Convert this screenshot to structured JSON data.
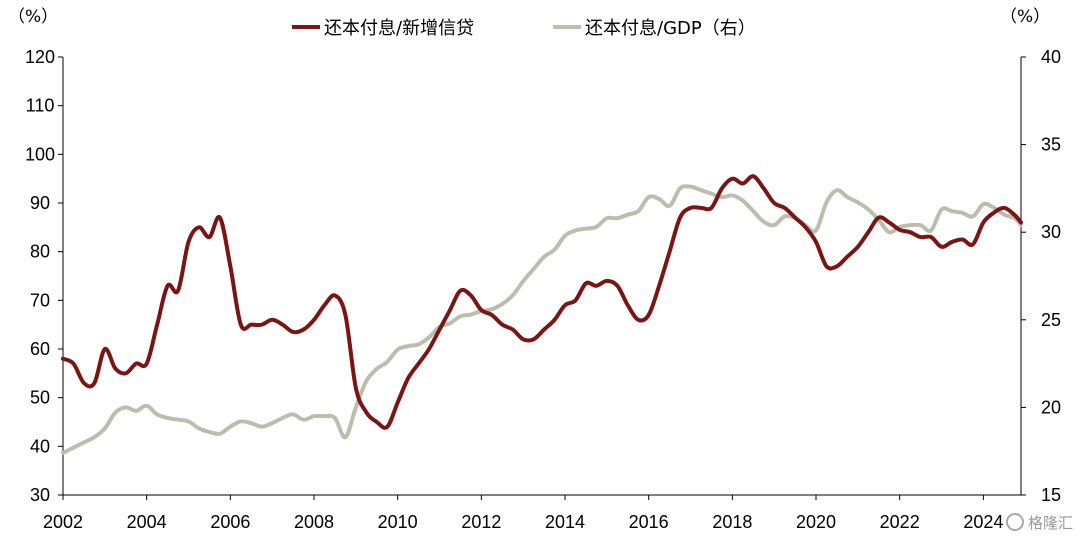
{
  "chart_data": {
    "type": "line",
    "legend_position": "top",
    "grid": false,
    "left_axis": {
      "unit_label": "（%）",
      "ylim": [
        30,
        120
      ],
      "ticks": [
        "120",
        "110",
        "100",
        "90",
        "80",
        "70",
        "60",
        "50",
        "40",
        "30"
      ]
    },
    "right_axis": {
      "unit_label": "（%）",
      "ylim": [
        15,
        40
      ],
      "ticks": [
        "40",
        "35",
        "30",
        "25",
        "20",
        "15"
      ]
    },
    "x_axis": {
      "xlim": [
        2002,
        2024.9
      ],
      "ticks": [
        "2002",
        "2004",
        "2006",
        "2008",
        "2010",
        "2012",
        "2014",
        "2016",
        "2018",
        "2020",
        "2022",
        "2024"
      ]
    },
    "series": [
      {
        "name": "还本付息/新增信贷",
        "axis": "left",
        "color": "#7b1414",
        "points": [
          [
            2002.0,
            58
          ],
          [
            2002.25,
            57
          ],
          [
            2002.5,
            53
          ],
          [
            2002.75,
            53
          ],
          [
            2003.0,
            60
          ],
          [
            2003.25,
            56
          ],
          [
            2003.5,
            55
          ],
          [
            2003.75,
            57
          ],
          [
            2004.0,
            57
          ],
          [
            2004.25,
            65
          ],
          [
            2004.5,
            73
          ],
          [
            2004.75,
            72
          ],
          [
            2005.0,
            82
          ],
          [
            2005.25,
            85
          ],
          [
            2005.5,
            83
          ],
          [
            2005.75,
            87
          ],
          [
            2006.0,
            77
          ],
          [
            2006.25,
            65
          ],
          [
            2006.5,
            65
          ],
          [
            2006.75,
            65
          ],
          [
            2007.0,
            66
          ],
          [
            2007.25,
            65
          ],
          [
            2007.5,
            63.5
          ],
          [
            2007.75,
            64
          ],
          [
            2008.0,
            66
          ],
          [
            2008.25,
            69
          ],
          [
            2008.5,
            71
          ],
          [
            2008.75,
            67
          ],
          [
            2009.0,
            52
          ],
          [
            2009.25,
            47
          ],
          [
            2009.5,
            45
          ],
          [
            2009.75,
            44
          ],
          [
            2010.0,
            49
          ],
          [
            2010.25,
            54
          ],
          [
            2010.5,
            57
          ],
          [
            2010.75,
            60
          ],
          [
            2011.0,
            64
          ],
          [
            2011.25,
            68
          ],
          [
            2011.5,
            72
          ],
          [
            2011.75,
            71
          ],
          [
            2012.0,
            68
          ],
          [
            2012.25,
            67
          ],
          [
            2012.5,
            65
          ],
          [
            2012.75,
            64
          ],
          [
            2013.0,
            62
          ],
          [
            2013.25,
            62
          ],
          [
            2013.5,
            64
          ],
          [
            2013.75,
            66
          ],
          [
            2014.0,
            69
          ],
          [
            2014.25,
            70
          ],
          [
            2014.5,
            73.5
          ],
          [
            2014.75,
            73
          ],
          [
            2015.0,
            74
          ],
          [
            2015.25,
            73
          ],
          [
            2015.5,
            69
          ],
          [
            2015.75,
            66
          ],
          [
            2016.0,
            67
          ],
          [
            2016.25,
            73
          ],
          [
            2016.5,
            80
          ],
          [
            2016.75,
            87
          ],
          [
            2017.0,
            89
          ],
          [
            2017.25,
            89
          ],
          [
            2017.5,
            89
          ],
          [
            2017.75,
            93
          ],
          [
            2018.0,
            95
          ],
          [
            2018.25,
            94
          ],
          [
            2018.5,
            95.5
          ],
          [
            2018.75,
            93
          ],
          [
            2019.0,
            90
          ],
          [
            2019.25,
            89
          ],
          [
            2019.5,
            87
          ],
          [
            2019.75,
            85
          ],
          [
            2020.0,
            82
          ],
          [
            2020.25,
            77
          ],
          [
            2020.5,
            77
          ],
          [
            2020.75,
            79
          ],
          [
            2021.0,
            81
          ],
          [
            2021.25,
            84
          ],
          [
            2021.5,
            87
          ],
          [
            2021.75,
            86
          ],
          [
            2022.0,
            84.5
          ],
          [
            2022.25,
            84
          ],
          [
            2022.5,
            83
          ],
          [
            2022.75,
            83
          ],
          [
            2023.0,
            81
          ],
          [
            2023.25,
            82
          ],
          [
            2023.5,
            82.5
          ],
          [
            2023.75,
            81.5
          ],
          [
            2024.0,
            86
          ],
          [
            2024.25,
            88
          ],
          [
            2024.5,
            89
          ],
          [
            2024.75,
            87.5
          ],
          [
            2024.9,
            86
          ]
        ]
      },
      {
        "name": "还本付息/GDP（右）",
        "axis": "right",
        "color": "#bdbdad",
        "points": [
          [
            2002.0,
            17.4
          ],
          [
            2002.25,
            17.7
          ],
          [
            2002.5,
            18.0
          ],
          [
            2002.75,
            18.3
          ],
          [
            2003.0,
            18.8
          ],
          [
            2003.25,
            19.7
          ],
          [
            2003.5,
            20.0
          ],
          [
            2003.75,
            19.8
          ],
          [
            2004.0,
            20.1
          ],
          [
            2004.25,
            19.6
          ],
          [
            2004.5,
            19.4
          ],
          [
            2004.75,
            19.3
          ],
          [
            2005.0,
            19.2
          ],
          [
            2005.25,
            18.8
          ],
          [
            2005.5,
            18.6
          ],
          [
            2005.75,
            18.5
          ],
          [
            2006.0,
            18.9
          ],
          [
            2006.25,
            19.2
          ],
          [
            2006.5,
            19.1
          ],
          [
            2006.75,
            18.9
          ],
          [
            2007.0,
            19.1
          ],
          [
            2007.25,
            19.4
          ],
          [
            2007.5,
            19.6
          ],
          [
            2007.75,
            19.3
          ],
          [
            2008.0,
            19.5
          ],
          [
            2008.25,
            19.5
          ],
          [
            2008.5,
            19.4
          ],
          [
            2008.75,
            18.3
          ],
          [
            2009.0,
            20.0
          ],
          [
            2009.25,
            21.5
          ],
          [
            2009.5,
            22.2
          ],
          [
            2009.75,
            22.6
          ],
          [
            2010.0,
            23.3
          ],
          [
            2010.25,
            23.5
          ],
          [
            2010.5,
            23.6
          ],
          [
            2010.75,
            24.0
          ],
          [
            2011.0,
            24.6
          ],
          [
            2011.25,
            24.8
          ],
          [
            2011.5,
            25.2
          ],
          [
            2011.75,
            25.3
          ],
          [
            2012.0,
            25.5
          ],
          [
            2012.25,
            25.6
          ],
          [
            2012.5,
            25.9
          ],
          [
            2012.75,
            26.4
          ],
          [
            2013.0,
            27.2
          ],
          [
            2013.25,
            27.9
          ],
          [
            2013.5,
            28.6
          ],
          [
            2013.75,
            29.0
          ],
          [
            2014.0,
            29.8
          ],
          [
            2014.25,
            30.1
          ],
          [
            2014.5,
            30.2
          ],
          [
            2014.75,
            30.3
          ],
          [
            2015.0,
            30.8
          ],
          [
            2015.25,
            30.8
          ],
          [
            2015.5,
            31.0
          ],
          [
            2015.75,
            31.2
          ],
          [
            2016.0,
            32.0
          ],
          [
            2016.25,
            31.9
          ],
          [
            2016.5,
            31.5
          ],
          [
            2016.75,
            32.5
          ],
          [
            2017.0,
            32.6
          ],
          [
            2017.25,
            32.4
          ],
          [
            2017.5,
            32.2
          ],
          [
            2017.75,
            32.0
          ],
          [
            2018.0,
            32.1
          ],
          [
            2018.25,
            31.8
          ],
          [
            2018.5,
            31.2
          ],
          [
            2018.75,
            30.6
          ],
          [
            2019.0,
            30.4
          ],
          [
            2019.25,
            30.9
          ],
          [
            2019.5,
            30.8
          ],
          [
            2019.75,
            30.4
          ],
          [
            2020.0,
            30.1
          ],
          [
            2020.25,
            31.7
          ],
          [
            2020.5,
            32.4
          ],
          [
            2020.75,
            32.0
          ],
          [
            2021.0,
            31.7
          ],
          [
            2021.25,
            31.3
          ],
          [
            2021.5,
            30.7
          ],
          [
            2021.75,
            30.0
          ],
          [
            2022.0,
            30.3
          ],
          [
            2022.25,
            30.4
          ],
          [
            2022.5,
            30.4
          ],
          [
            2022.75,
            30.1
          ],
          [
            2023.0,
            31.3
          ],
          [
            2023.25,
            31.2
          ],
          [
            2023.5,
            31.1
          ],
          [
            2023.75,
            30.9
          ],
          [
            2024.0,
            31.6
          ],
          [
            2024.25,
            31.4
          ],
          [
            2024.5,
            31.0
          ],
          [
            2024.75,
            30.8
          ],
          [
            2024.9,
            30.4
          ]
        ]
      }
    ]
  },
  "watermark": {
    "text": "格隆汇"
  }
}
